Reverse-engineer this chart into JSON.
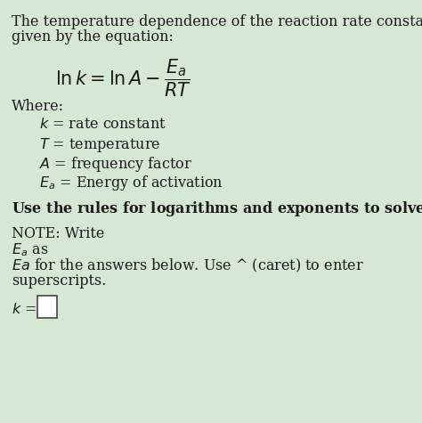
{
  "bg_color": "#d4e8d4",
  "text_color": "#1a1a1a",
  "title_line1": "The temperature dependence of the reaction rate constant is",
  "title_line2": "given by the equation:",
  "where_label": "Where:",
  "def1": "$k$ = rate constant",
  "def2": "$T$ = temperature",
  "def3": "$A$ = frequency factor",
  "def4": "$E_a$ = Energy of activation",
  "bold_line": "Use the rules for logarithms and exponents to solve for $k$.",
  "note_line1": "NOTE: Write",
  "note_line2": "$E_a$ as",
  "note_line3": "$Ea$ for the answers below. Use ^ (caret) to enter",
  "note_line4": "superscripts.",
  "k_label": "$k$ =",
  "equation": "$\\ln k = \\ln A - \\dfrac{E_a}{RT}$",
  "font_size_body": 11.5,
  "font_size_equation": 15,
  "font_size_bold": 11.5,
  "fig_width": 4.74,
  "fig_height": 4.75
}
